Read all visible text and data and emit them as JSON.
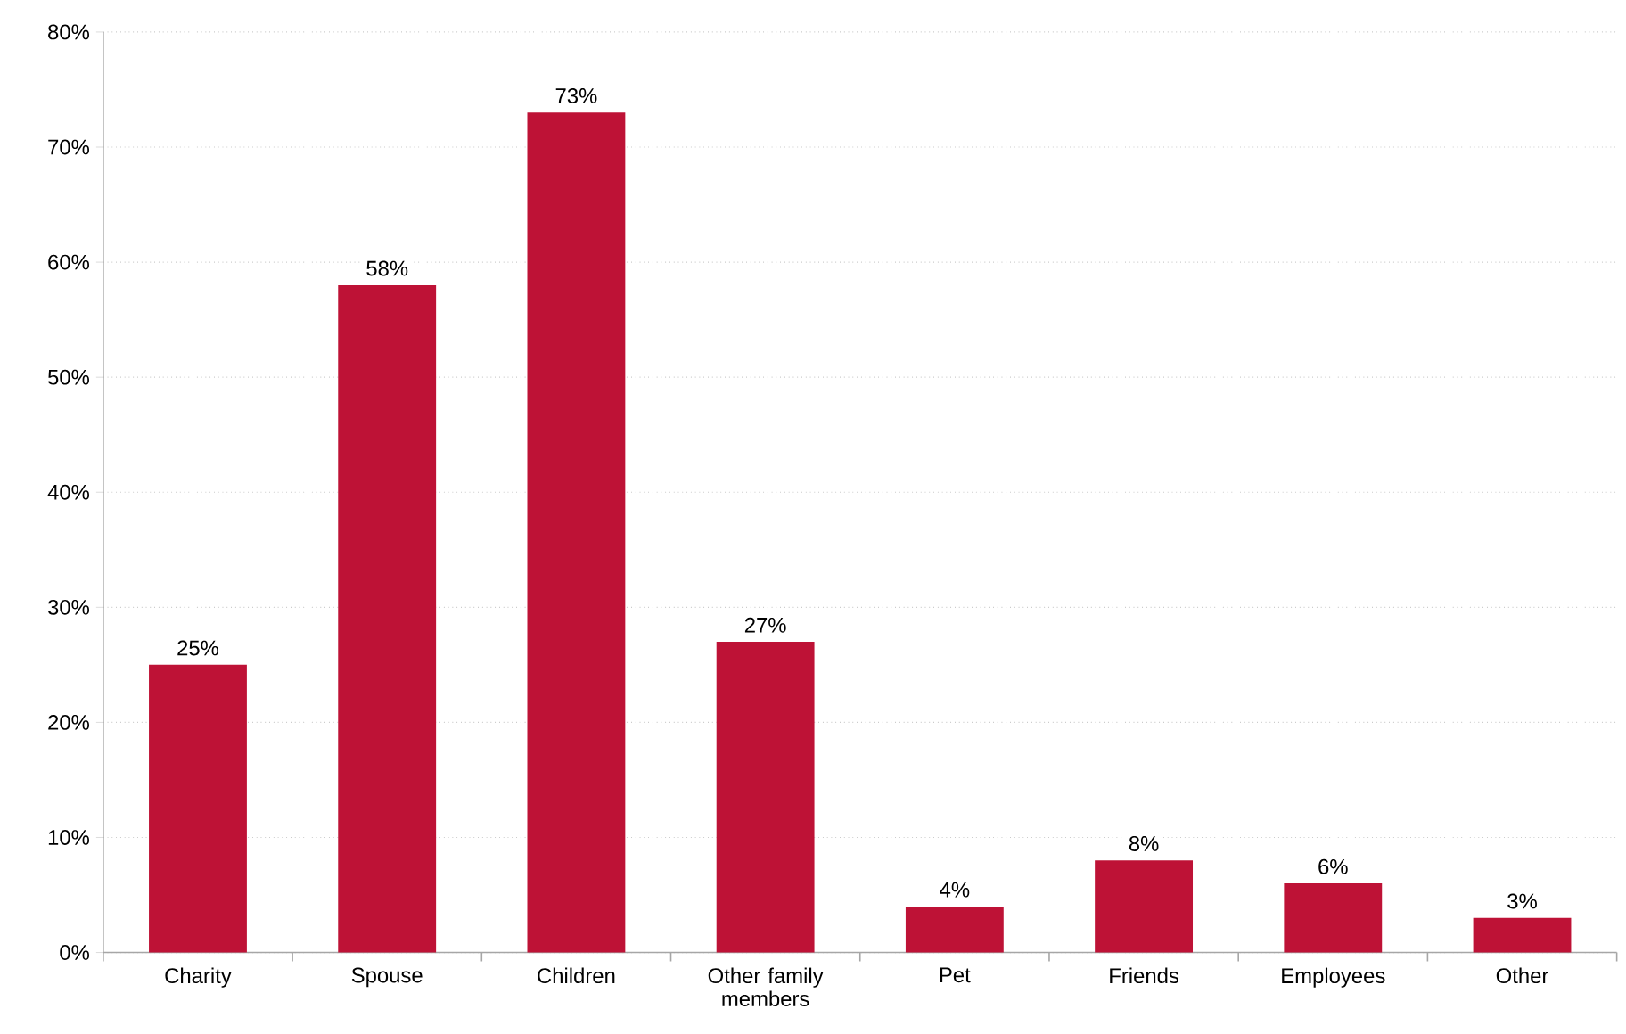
{
  "chart_data": {
    "type": "bar",
    "categories": [
      "Charity",
      "Spouse",
      "Children",
      "Other family members",
      "Pet",
      "Friends",
      "Employees",
      "Other"
    ],
    "values": [
      25,
      58,
      73,
      27,
      4,
      8,
      6,
      3
    ],
    "value_labels": [
      "25%",
      "58%",
      "73%",
      "27%",
      "4%",
      "8%",
      "6%",
      "3%"
    ],
    "color": "#be1236",
    "ylim": [
      0,
      80
    ],
    "yticks": [
      {
        "value": 0,
        "label": "0%"
      },
      {
        "value": 10,
        "label": "10%"
      },
      {
        "value": 20,
        "label": "20%"
      },
      {
        "value": 30,
        "label": "30%"
      },
      {
        "value": 40,
        "label": "40%"
      },
      {
        "value": 50,
        "label": "50%"
      },
      {
        "value": 60,
        "label": "60%"
      },
      {
        "value": 70,
        "label": "70%"
      },
      {
        "value": 80,
        "label": "80%"
      }
    ],
    "grid": "y"
  }
}
